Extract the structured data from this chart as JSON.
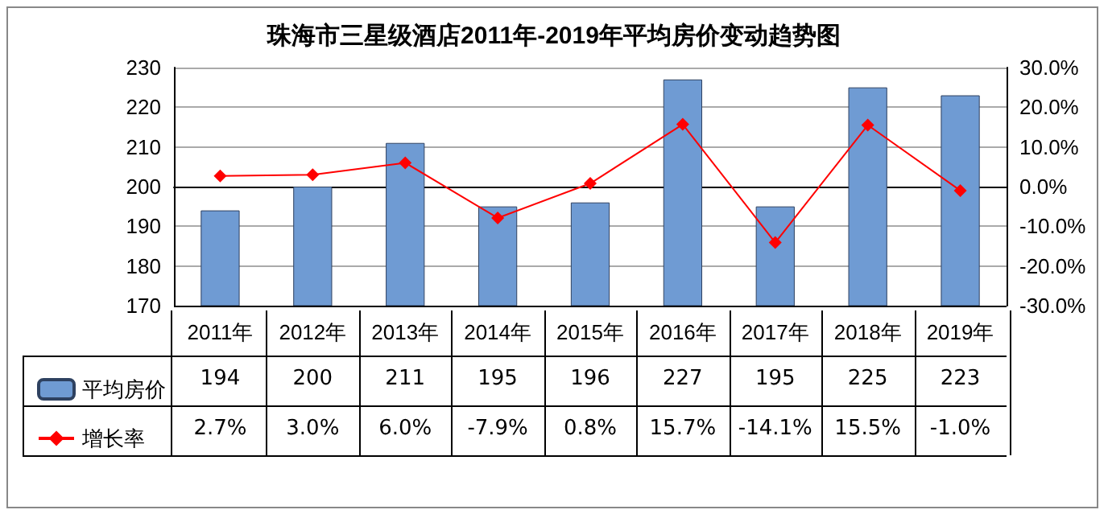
{
  "chart_data": {
    "type": "bar",
    "title": "珠海市三星级酒店2011年-2019年平均房价变动趋势图",
    "categories": [
      "2011年",
      "2012年",
      "2013年",
      "2014年",
      "2015年",
      "2016年",
      "2017年",
      "2018年",
      "2019年"
    ],
    "series": [
      {
        "name": "平均房价",
        "color": "#6f9bd3",
        "values": [
          194,
          200,
          211,
          195,
          196,
          227,
          195,
          225,
          223
        ],
        "value_labels": [
          "194",
          "200",
          "211",
          "195",
          "196",
          "227",
          "195",
          "225",
          "223"
        ]
      },
      {
        "name": "增长率",
        "type": "line",
        "axis": "y2",
        "color": "#ff0000",
        "marker": "diamond",
        "values": [
          2.7,
          3.0,
          6.0,
          -7.9,
          0.8,
          15.7,
          -14.1,
          15.5,
          -1.0
        ],
        "value_labels": [
          "2.7%",
          "3.0%",
          "6.0%",
          "-7.9%",
          "0.8%",
          "15.7%",
          "-14.1%",
          "15.5%",
          "-1.0%"
        ]
      }
    ],
    "ylim": [
      170,
      230
    ],
    "yticks": [
      170,
      180,
      190,
      200,
      210,
      220,
      230
    ],
    "y2lim": [
      -30,
      30
    ],
    "y2ticks": [
      {
        "value": -30,
        "label": "-30.0%"
      },
      {
        "value": -20,
        "label": "-20.0%"
      },
      {
        "value": -10,
        "label": "-10.0%"
      },
      {
        "value": 0,
        "label": "0.0%"
      },
      {
        "value": 10,
        "label": "10.0%"
      },
      {
        "value": 20,
        "label": "20.0%"
      },
      {
        "value": 30,
        "label": "30.0%"
      }
    ],
    "grid": "y",
    "legend": "bottom left"
  }
}
